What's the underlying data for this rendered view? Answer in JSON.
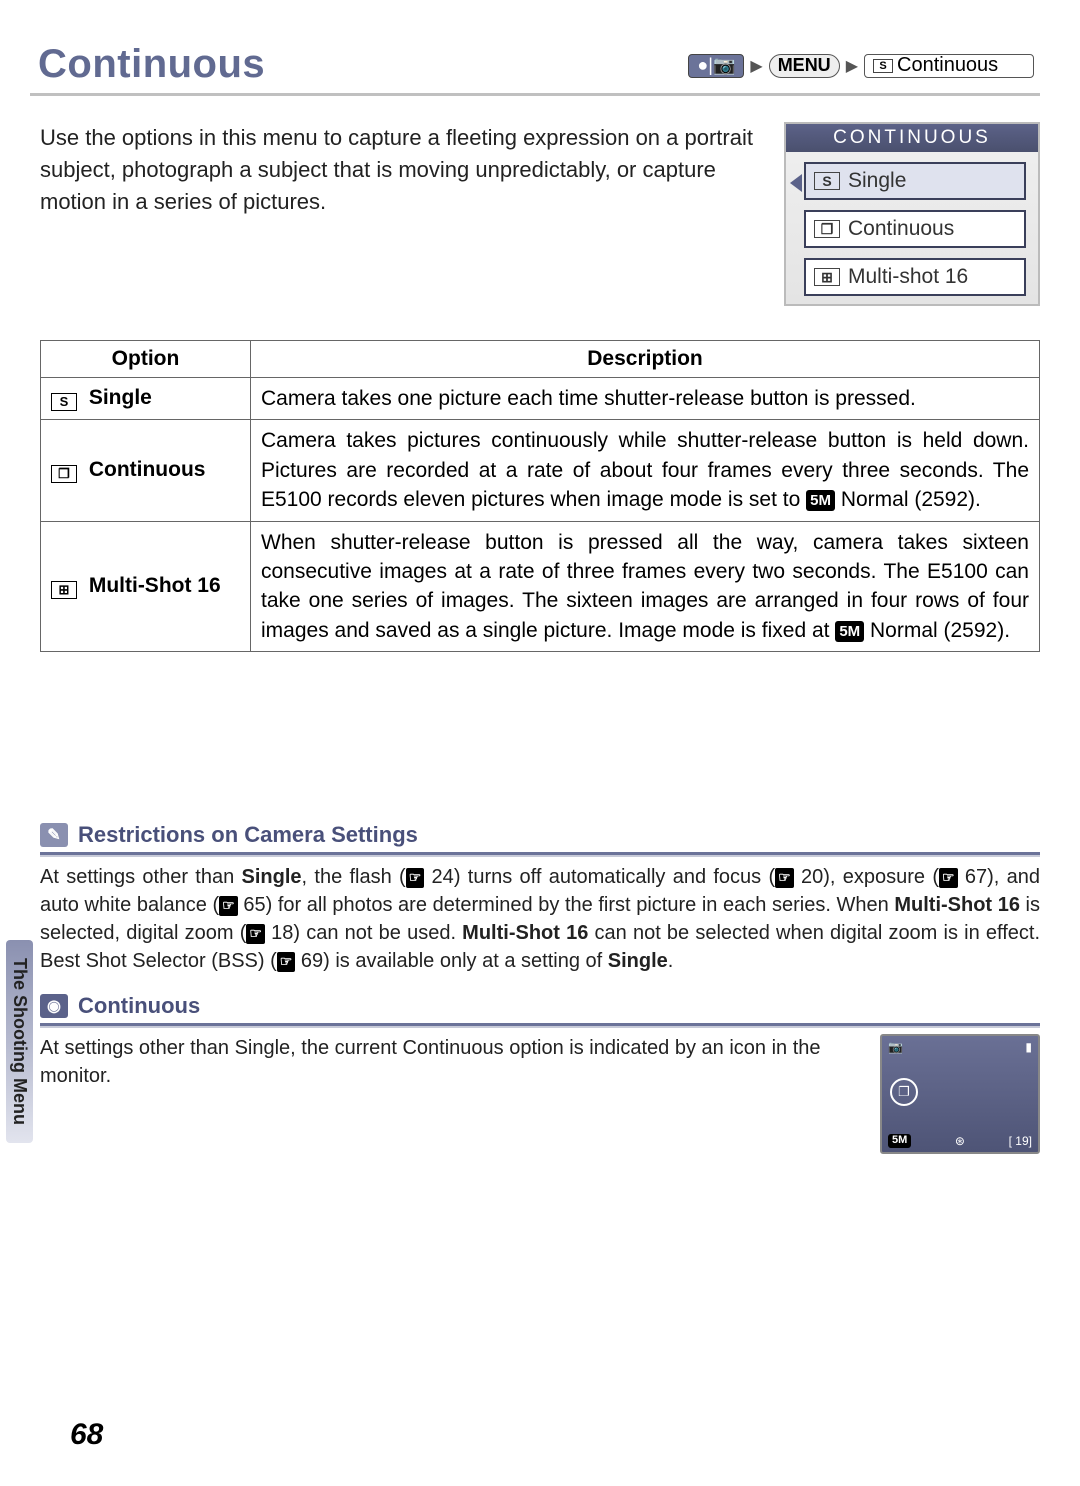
{
  "colors": {
    "accent": "#616a91",
    "accent_fill": "#6b7399",
    "rule_light": "#c7cad8",
    "border": "#666666",
    "menu_header_top": "#5c6288",
    "menu_header_bottom": "#4a506e"
  },
  "header": {
    "title": "Continuous",
    "breadcrumb": {
      "mode_icons": "●|📷",
      "menu_label": "MENU",
      "s_icon": "S",
      "item": "Continuous"
    }
  },
  "intro": "Use the options in this menu to capture a fleeting expression on a portrait subject, photograph a subject that is moving unpredictably, or capture motion in a series of pictures.",
  "menu_shot": {
    "title": "CONTINUOUS",
    "items": [
      {
        "icon": "S",
        "label": "Single",
        "selected": true
      },
      {
        "icon": "❐",
        "label": "Continuous",
        "selected": false
      },
      {
        "icon": "⊞",
        "label": "Multi-shot 16",
        "selected": false
      }
    ]
  },
  "table": {
    "headers": [
      "Option",
      "Description"
    ],
    "rows": [
      {
        "icon": "S",
        "option": "Single",
        "desc_parts": [
          "Camera takes one picture each time shutter-release button is pressed."
        ]
      },
      {
        "icon": "❐",
        "option": "Continuous",
        "desc_parts": [
          "Camera takes pictures continuously while shutter-release button is held down. Pictures are recorded at a rate of about four frames every three seconds. The E5100 records eleven pictures when image mode is set to ",
          {
            "pill": "5M"
          },
          " Normal (2592)."
        ]
      },
      {
        "icon": "⊞",
        "option": "Multi-Shot 16",
        "desc_parts": [
          "When shutter-release button is pressed all the way, camera takes sixteen consecutive images at a rate of three frames every two seconds. The E5100 can take one series of images. The sixteen images are arranged in four rows of four images and saved as a single picture. Image mode is fixed at ",
          {
            "pill": "5M"
          },
          " Normal (2592)."
        ]
      }
    ]
  },
  "note1": {
    "icon_bg": "#8a90b0",
    "icon": "✎",
    "title": "Restrictions on Camera Settings",
    "parts": [
      "At settings other than ",
      {
        "b": "Single"
      },
      ", the flash (",
      {
        "ref": "24"
      },
      ") turns off automatically and focus (",
      {
        "ref": "20"
      },
      "), exposure (",
      {
        "ref": "67"
      },
      "), and auto white balance (",
      {
        "ref": "65"
      },
      ") for all photos are determined by the first picture in each series. When ",
      {
        "b": "Multi-Shot 16"
      },
      " is selected, digital zoom (",
      {
        "ref": "18"
      },
      ") can not be used. ",
      {
        "b": "Multi-Shot 16"
      },
      " can not be selected when digital zoom is in effect. Best Shot Selector (BSS) (",
      {
        "ref": "69"
      },
      ") is available only at a setting of ",
      {
        "b": "Single"
      },
      "."
    ]
  },
  "note2": {
    "icon_bg": "#5b628a",
    "icon": "◉",
    "title": "Continuous",
    "text_parts": [
      "At settings other than ",
      {
        "b": "Single"
      },
      ", the current ",
      {
        "b": "Continuous"
      },
      " option is indicated by an icon in the monitor."
    ],
    "monitor": {
      "top_left": "📷",
      "top_right": "▮",
      "cont_icon": "❐",
      "bottom_left": "5M",
      "bottom_mid": "⊛",
      "bottom_right": "[  19]"
    }
  },
  "side_label": "The Shooting Menu",
  "page_number": "68"
}
